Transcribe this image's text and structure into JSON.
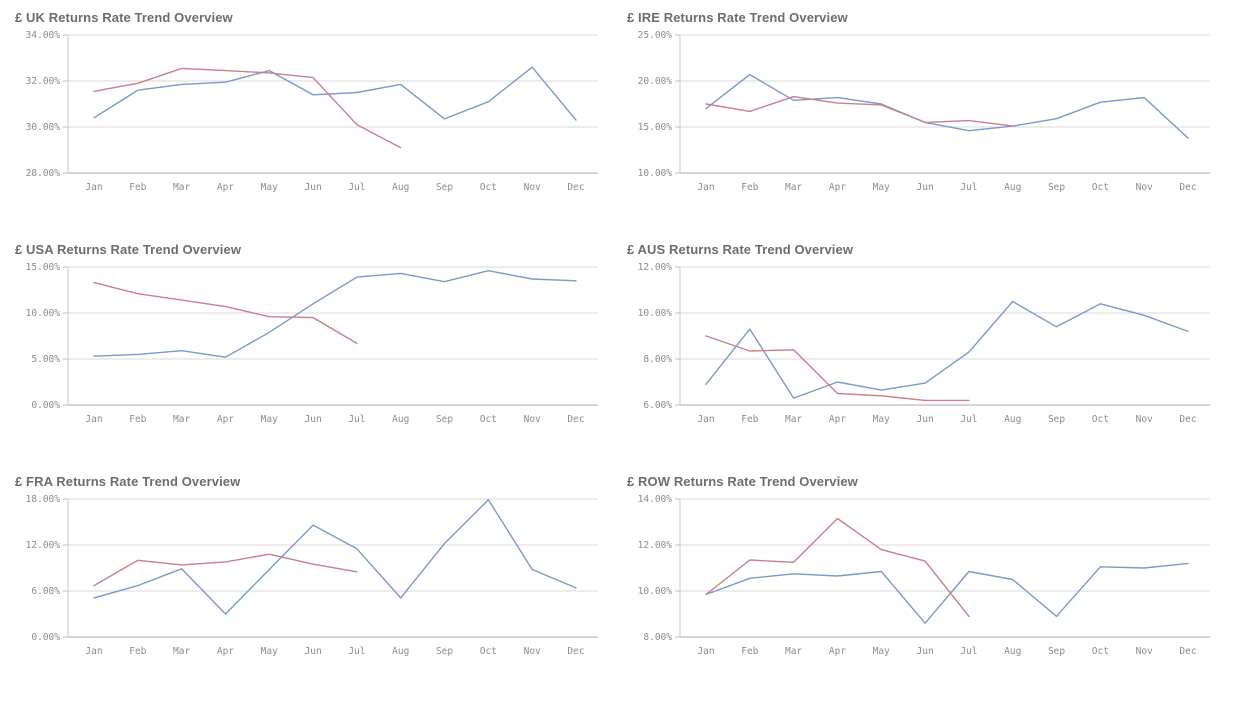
{
  "styles": {
    "blue": "#7b99cb",
    "red": "#c98086",
    "gridline": "#d9d9d9",
    "axis_line": "#ababab",
    "left_axis": "#c9c9c9",
    "tick_mark": "#bdbdbd",
    "tick_label_color": "#8c8c8c",
    "title_color": "#6d6d6d"
  },
  "chart_data": [
    {
      "type": "line",
      "title": "£ UK Returns Rate Trend Overview",
      "xlabel": "",
      "ylabel": "",
      "grid": true,
      "legend": "none",
      "categories": [
        "Jan",
        "Feb",
        "Mar",
        "Apr",
        "May",
        "Jun",
        "Jul",
        "Aug",
        "Sep",
        "Oct",
        "Nov",
        "Dec"
      ],
      "ylim": [
        28,
        34
      ],
      "ytick_values": [
        34,
        32,
        30,
        28
      ],
      "ytick_labels": [
        "34.00%",
        "32.00%",
        "30.00%",
        "28.00%"
      ],
      "series": [
        {
          "name": "series-blue",
          "color_key": "blue",
          "values": [
            30.4,
            31.6,
            31.85,
            31.95,
            32.45,
            31.4,
            31.5,
            31.85,
            30.35,
            31.1,
            32.6,
            30.3
          ]
        },
        {
          "name": "series-red",
          "color_key": "red",
          "values": [
            31.55,
            31.9,
            32.55,
            32.45,
            32.35,
            32.15,
            30.1,
            29.1
          ]
        }
      ]
    },
    {
      "type": "line",
      "title": "£ IRE Returns Rate Trend Overview",
      "xlabel": "",
      "ylabel": "",
      "grid": true,
      "legend": "none",
      "categories": [
        "Jan",
        "Feb",
        "Mar",
        "Apr",
        "May",
        "Jun",
        "Jul",
        "Aug",
        "Sep",
        "Oct",
        "Nov",
        "Dec"
      ],
      "ylim": [
        10,
        25
      ],
      "ytick_values": [
        25,
        20,
        15,
        10
      ],
      "ytick_labels": [
        "25.00%",
        "20.00%",
        "15.00%",
        "10.00%"
      ],
      "series": [
        {
          "name": "series-blue",
          "color_key": "blue",
          "values": [
            17.0,
            20.7,
            17.9,
            18.2,
            17.5,
            15.5,
            14.6,
            15.1,
            15.9,
            17.7,
            18.2,
            13.8
          ]
        },
        {
          "name": "series-red",
          "color_key": "red",
          "values": [
            17.5,
            16.7,
            18.3,
            17.6,
            17.4,
            15.5,
            15.7,
            15.1
          ]
        }
      ]
    },
    {
      "type": "line",
      "title": "£ USA Returns Rate Trend Overview",
      "xlabel": "",
      "ylabel": "",
      "grid": true,
      "legend": "none",
      "categories": [
        "Jan",
        "Feb",
        "Mar",
        "Apr",
        "May",
        "Jun",
        "Jul",
        "Aug",
        "Sep",
        "Oct",
        "Nov",
        "Dec"
      ],
      "ylim": [
        0,
        15
      ],
      "ytick_values": [
        15,
        10,
        5,
        0
      ],
      "ytick_labels": [
        "15.00%",
        "10.00%",
        "5.00%",
        "0.00%"
      ],
      "series": [
        {
          "name": "series-blue",
          "color_key": "blue",
          "values": [
            5.3,
            5.5,
            5.9,
            5.2,
            7.9,
            11.0,
            13.9,
            14.3,
            13.4,
            14.6,
            13.7,
            13.5
          ]
        },
        {
          "name": "series-red",
          "color_key": "red",
          "values": [
            13.3,
            12.1,
            11.4,
            10.7,
            9.6,
            9.5,
            6.7
          ]
        }
      ]
    },
    {
      "type": "line",
      "title": "£ AUS Returns Rate Trend Overview",
      "xlabel": "",
      "ylabel": "",
      "grid": true,
      "legend": "none",
      "categories": [
        "Jan",
        "Feb",
        "Mar",
        "Apr",
        "May",
        "Jun",
        "Jul",
        "Aug",
        "Sep",
        "Oct",
        "Nov",
        "Dec"
      ],
      "ylim": [
        6,
        12
      ],
      "ytick_values": [
        12,
        10,
        8,
        6
      ],
      "ytick_labels": [
        "12.00%",
        "10.00%",
        "8.00%",
        "6.00%"
      ],
      "series": [
        {
          "name": "series-blue",
          "color_key": "blue",
          "values": [
            6.9,
            9.3,
            6.3,
            7.0,
            6.65,
            6.95,
            8.3,
            10.5,
            9.4,
            10.4,
            9.9,
            9.2
          ]
        },
        {
          "name": "series-red",
          "color_key": "red",
          "values": [
            9.0,
            8.35,
            8.4,
            6.5,
            6.4,
            6.2,
            6.2
          ]
        }
      ]
    },
    {
      "type": "line",
      "title": "£ FRA Returns Rate Trend Overview",
      "xlabel": "",
      "ylabel": "",
      "grid": true,
      "legend": "none",
      "categories": [
        "Jan",
        "Feb",
        "Mar",
        "Apr",
        "May",
        "Jun",
        "Jul",
        "Aug",
        "Sep",
        "Oct",
        "Nov",
        "Dec"
      ],
      "ylim": [
        0,
        18
      ],
      "ytick_values": [
        18,
        12,
        6,
        0
      ],
      "ytick_labels": [
        "18.00%",
        "12.00%",
        "6.00%",
        "0.00%"
      ],
      "series": [
        {
          "name": "series-blue",
          "color_key": "blue",
          "values": [
            5.1,
            6.7,
            8.9,
            3.0,
            8.8,
            14.6,
            11.5,
            5.1,
            12.2,
            17.9,
            8.8,
            6.4
          ]
        },
        {
          "name": "series-red",
          "color_key": "red",
          "values": [
            6.7,
            10.0,
            9.4,
            9.8,
            10.8,
            9.5,
            8.5
          ]
        }
      ]
    },
    {
      "type": "line",
      "title": "£ ROW Returns Rate Trend Overview",
      "xlabel": "",
      "ylabel": "",
      "grid": true,
      "legend": "none",
      "categories": [
        "Jan",
        "Feb",
        "Mar",
        "Apr",
        "May",
        "Jun",
        "Jul",
        "Aug",
        "Sep",
        "Oct",
        "Nov",
        "Dec"
      ],
      "ylim": [
        8,
        14
      ],
      "ytick_values": [
        14,
        12,
        10,
        8
      ],
      "ytick_labels": [
        "14.00%",
        "12.00%",
        "10.00%",
        "8.00%"
      ],
      "series": [
        {
          "name": "series-blue",
          "color_key": "blue",
          "values": [
            9.85,
            10.55,
            10.75,
            10.65,
            10.85,
            8.6,
            10.85,
            10.5,
            8.9,
            11.05,
            11.0,
            11.2
          ]
        },
        {
          "name": "series-red",
          "color_key": "red",
          "values": [
            9.85,
            11.35,
            11.25,
            13.15,
            11.8,
            11.3,
            8.9
          ]
        }
      ]
    }
  ]
}
